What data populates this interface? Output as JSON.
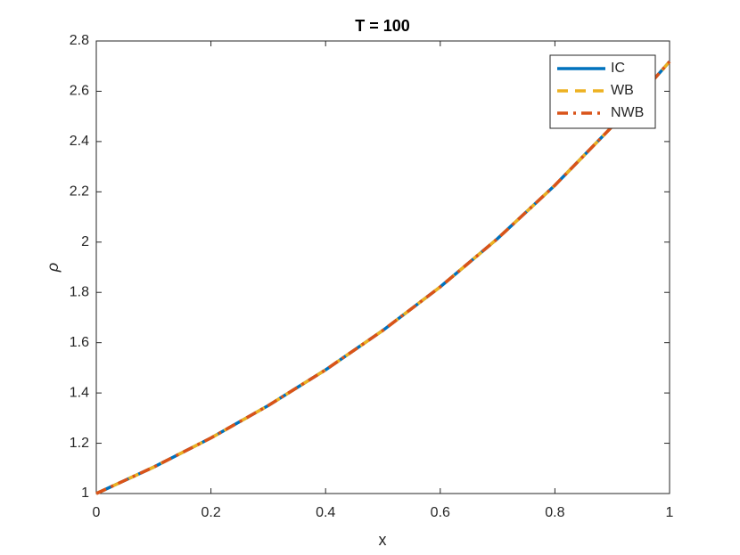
{
  "chart_data": {
    "type": "line",
    "title": "T = 100",
    "x_label": "x",
    "y_label": "ρ",
    "x": [
      0,
      0.1,
      0.2,
      0.3,
      0.4,
      0.5,
      0.6,
      0.7,
      0.8,
      0.9,
      1
    ],
    "series": [
      {
        "name": "IC",
        "color": "#0072bd",
        "style": "solid",
        "values": [
          1,
          1.105,
          1.221,
          1.35,
          1.492,
          1.649,
          1.822,
          2.014,
          2.226,
          2.46,
          2.718
        ]
      },
      {
        "name": "WB",
        "color": "#edb120",
        "style": "dashed",
        "values": [
          1,
          1.105,
          1.221,
          1.35,
          1.492,
          1.649,
          1.822,
          2.014,
          2.226,
          2.46,
          2.718
        ]
      },
      {
        "name": "NWB",
        "color": "#d95319",
        "style": "dashdot",
        "values": [
          1,
          1.105,
          1.221,
          1.35,
          1.492,
          1.649,
          1.822,
          2.014,
          2.226,
          2.46,
          2.718
        ]
      }
    ],
    "xlim": [
      0,
      1
    ],
    "xticks": [
      0,
      0.2,
      0.4,
      0.6,
      0.8,
      1
    ],
    "ylim": [
      1,
      2.8
    ],
    "yticks": [
      1,
      1.2,
      1.4,
      1.6,
      1.8,
      2,
      2.2,
      2.4,
      2.6,
      2.8
    ],
    "grid": false,
    "legend": "northeast"
  }
}
